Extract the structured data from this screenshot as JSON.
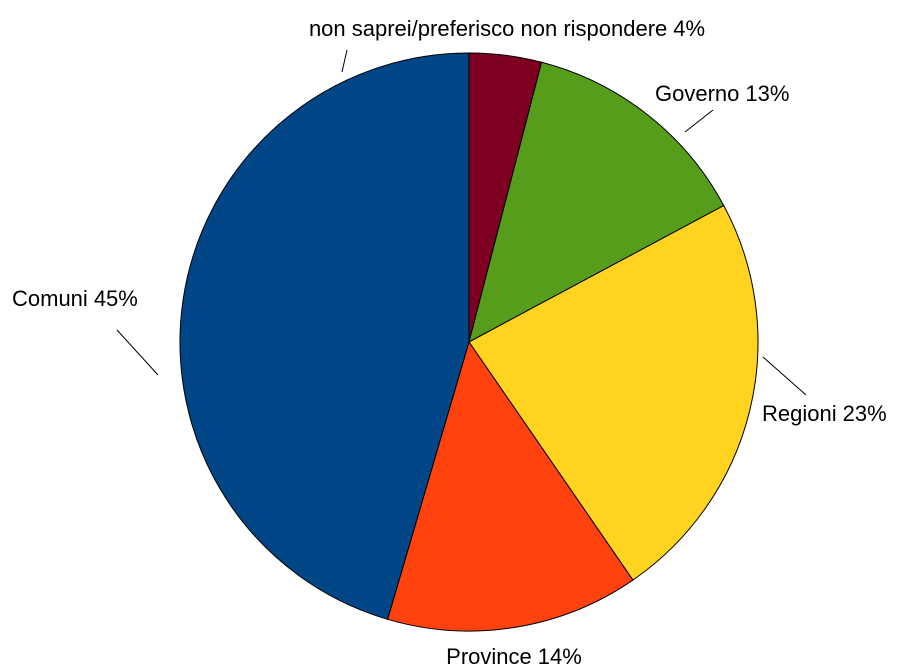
{
  "chart_data": {
    "type": "pie",
    "categories": [
      "non saprei/preferisco non rispondere",
      "Governo",
      "Regioni",
      "Province",
      "Comuni"
    ],
    "values": [
      4,
      13,
      23,
      14,
      45
    ],
    "value_labels": [
      "4%",
      "13%",
      "23%",
      "14%",
      "45%"
    ],
    "colors": [
      "#7e0021",
      "#579d1c",
      "#ffd320",
      "#ff420e",
      "#004586"
    ]
  }
}
